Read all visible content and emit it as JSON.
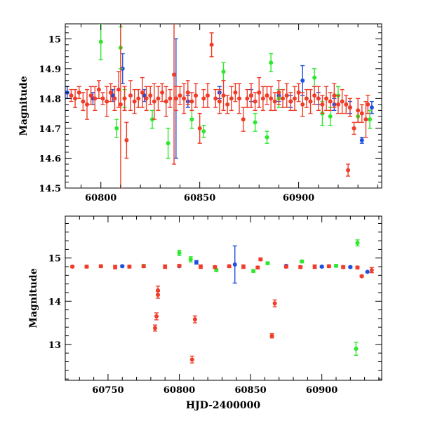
{
  "colors": {
    "red": "#f03c28",
    "green": "#2ee82e",
    "blue": "#1f4fe0"
  },
  "chart_data": [
    {
      "type": "scatter",
      "title": "",
      "xlabel": "",
      "ylabel": "Magnitude",
      "xlim": [
        60782,
        60942
      ],
      "ylim": [
        15.05,
        14.5
      ],
      "y_inverted": true,
      "xticks": [
        60800,
        60850,
        60900
      ],
      "yticks": [
        14.5,
        14.6,
        14.7,
        14.8,
        14.9,
        15
      ],
      "yticks_labels": [
        "14.5",
        "14.6",
        "14.7",
        "14.8",
        "14.9",
        "15"
      ],
      "grid": false,
      "series": [
        {
          "color": "red",
          "points": [
            [
              60785,
              14.81,
              0.02
            ],
            [
              60787,
              14.8,
              0.03
            ],
            [
              60789,
              14.82,
              0.02
            ],
            [
              60791,
              14.79,
              0.03
            ],
            [
              60793,
              14.78,
              0.05
            ],
            [
              60795,
              14.81,
              0.03
            ],
            [
              60797,
              14.8,
              0.04
            ],
            [
              60799,
              14.83,
              0.03
            ],
            [
              60801,
              14.8,
              0.02
            ],
            [
              60803,
              14.79,
              0.05
            ],
            [
              60805,
              14.82,
              0.03
            ],
            [
              60807,
              14.8,
              0.04
            ],
            [
              60809,
              14.83,
              0.06
            ],
            [
              60810,
              14.78,
              0.28
            ],
            [
              60812,
              14.8,
              0.04
            ],
            [
              60813,
              14.66,
              0.06
            ],
            [
              60815,
              14.81,
              0.05
            ],
            [
              60817,
              14.79,
              0.04
            ],
            [
              60819,
              14.8,
              0.03
            ],
            [
              60821,
              14.82,
              0.05
            ],
            [
              60823,
              14.8,
              0.04
            ],
            [
              60825,
              14.81,
              0.03
            ],
            [
              60827,
              14.79,
              0.06
            ],
            [
              60829,
              14.8,
              0.04
            ],
            [
              60831,
              14.82,
              0.03
            ],
            [
              60833,
              14.79,
              0.05
            ],
            [
              60835,
              14.8,
              0.03
            ],
            [
              60837,
              14.88,
              0.3
            ],
            [
              60838,
              14.8,
              0.04
            ],
            [
              60840,
              14.81,
              0.03
            ],
            [
              60842,
              14.8,
              0.05
            ],
            [
              60844,
              14.82,
              0.04
            ],
            [
              60846,
              14.79,
              0.03
            ],
            [
              60848,
              14.81,
              0.04
            ],
            [
              60850,
              14.7,
              0.05
            ],
            [
              60852,
              14.8,
              0.03
            ],
            [
              60854,
              14.81,
              0.04
            ],
            [
              60856,
              14.98,
              0.04
            ],
            [
              60858,
              14.8,
              0.03
            ],
            [
              60860,
              14.79,
              0.04
            ],
            [
              60862,
              14.81,
              0.05
            ],
            [
              60864,
              14.78,
              0.03
            ],
            [
              60866,
              14.8,
              0.04
            ],
            [
              60868,
              14.82,
              0.03
            ],
            [
              60870,
              14.8,
              0.05
            ],
            [
              60872,
              14.73,
              0.04
            ],
            [
              60874,
              14.8,
              0.03
            ],
            [
              60876,
              14.81,
              0.04
            ],
            [
              60878,
              14.79,
              0.03
            ],
            [
              60880,
              14.82,
              0.05
            ],
            [
              60882,
              14.8,
              0.04
            ],
            [
              60884,
              14.81,
              0.03
            ],
            [
              60886,
              14.8,
              0.04
            ],
            [
              60888,
              14.79,
              0.03
            ],
            [
              60890,
              14.82,
              0.04
            ],
            [
              60892,
              14.8,
              0.03
            ],
            [
              60894,
              14.81,
              0.04
            ],
            [
              60896,
              14.79,
              0.03
            ],
            [
              60898,
              14.8,
              0.04
            ],
            [
              60900,
              14.82,
              0.03
            ],
            [
              60902,
              14.78,
              0.04
            ],
            [
              60904,
              14.8,
              0.03
            ],
            [
              60906,
              14.79,
              0.04
            ],
            [
              60908,
              14.81,
              0.03
            ],
            [
              60910,
              14.8,
              0.04
            ],
            [
              60912,
              14.78,
              0.03
            ],
            [
              60914,
              14.8,
              0.04
            ],
            [
              60916,
              14.79,
              0.03
            ],
            [
              60918,
              14.81,
              0.04
            ],
            [
              60920,
              14.78,
              0.03
            ],
            [
              60922,
              14.79,
              0.04
            ],
            [
              60924,
              14.78,
              0.03
            ],
            [
              60925,
              14.56,
              0.02
            ],
            [
              60926,
              14.77,
              0.03
            ],
            [
              60928,
              14.7,
              0.02
            ],
            [
              60930,
              14.76,
              0.04
            ],
            [
              60932,
              14.75,
              0.03
            ],
            [
              60934,
              14.73,
              0.06
            ],
            [
              60935,
              14.78,
              0.03
            ]
          ]
        },
        {
          "color": "green",
          "points": [
            [
              60800,
              14.99,
              0.06
            ],
            [
              60808,
              14.7,
              0.03
            ],
            [
              60810,
              14.97,
              0.07
            ],
            [
              60812,
              14.8,
              0.03
            ],
            [
              60826,
              14.73,
              0.03
            ],
            [
              60834,
              14.65,
              0.05
            ],
            [
              60846,
              14.73,
              0.03
            ],
            [
              60852,
              14.69,
              0.02
            ],
            [
              60862,
              14.89,
              0.03
            ],
            [
              60878,
              14.72,
              0.03
            ],
            [
              60884,
              14.67,
              0.02
            ],
            [
              60886,
              14.92,
              0.03
            ],
            [
              60890,
              14.8,
              0.03
            ],
            [
              60908,
              14.87,
              0.03
            ],
            [
              60912,
              14.75,
              0.04
            ],
            [
              60916,
              14.74,
              0.03
            ],
            [
              60920,
              14.81,
              0.03
            ],
            [
              60930,
              14.74,
              0.02
            ],
            [
              60936,
              14.73,
              0.03
            ]
          ]
        },
        {
          "color": "blue",
          "points": [
            [
              60783,
              14.82,
              0.02
            ],
            [
              60796,
              14.8,
              0.02
            ],
            [
              60806,
              14.81,
              0.02
            ],
            [
              60811,
              14.9,
              0.05
            ],
            [
              60822,
              14.81,
              0.02
            ],
            [
              60838,
              14.8,
              0.2
            ],
            [
              60844,
              14.79,
              0.02
            ],
            [
              60860,
              14.82,
              0.02
            ],
            [
              60876,
              14.81,
              0.02
            ],
            [
              60890,
              14.81,
              0.02
            ],
            [
              60896,
              14.79,
              0.02
            ],
            [
              60902,
              14.86,
              0.05
            ],
            [
              60910,
              14.8,
              0.02
            ],
            [
              60918,
              14.78,
              0.02
            ],
            [
              60926,
              14.77,
              0.02
            ],
            [
              60932,
              14.66,
              0.01
            ],
            [
              60937,
              14.77,
              0.02
            ]
          ]
        }
      ]
    },
    {
      "type": "scatter",
      "title": "",
      "xlabel": "HJD-2400000",
      "ylabel": "Magnitude",
      "xlim": [
        60720,
        60942
      ],
      "ylim": [
        15.97,
        12.17
      ],
      "y_inverted": true,
      "xticks": [
        60750,
        60800,
        60850,
        60900
      ],
      "yticks": [
        13,
        14,
        15
      ],
      "yticks_labels": [
        "13",
        "14",
        "15"
      ],
      "grid": false,
      "series": [
        {
          "color": "red",
          "points": [
            [
              60725,
              14.8,
              0.02
            ],
            [
              60735,
              14.8,
              0.03
            ],
            [
              60745,
              14.81,
              0.03
            ],
            [
              60755,
              14.79,
              0.04
            ],
            [
              60765,
              14.8,
              0.03
            ],
            [
              60775,
              14.81,
              0.03
            ],
            [
              60783,
              13.38,
              0.07
            ],
            [
              60784,
              13.65,
              0.08
            ],
            [
              60785,
              14.15,
              0.08
            ],
            [
              60785,
              14.25,
              0.1
            ],
            [
              60790,
              14.8,
              0.04
            ],
            [
              60800,
              14.82,
              0.03
            ],
            [
              60809,
              12.65,
              0.08
            ],
            [
              60811,
              13.58,
              0.08
            ],
            [
              60815,
              14.8,
              0.04
            ],
            [
              60825,
              14.79,
              0.03
            ],
            [
              60835,
              14.81,
              0.03
            ],
            [
              60845,
              14.8,
              0.04
            ],
            [
              60855,
              14.78,
              0.03
            ],
            [
              60857,
              14.97,
              0.03
            ],
            [
              60865,
              13.2,
              0.05
            ],
            [
              60867,
              13.95,
              0.08
            ],
            [
              60875,
              14.8,
              0.03
            ],
            [
              60885,
              14.79,
              0.03
            ],
            [
              60895,
              14.8,
              0.04
            ],
            [
              60905,
              14.81,
              0.03
            ],
            [
              60915,
              14.79,
              0.03
            ],
            [
              60925,
              14.78,
              0.03
            ],
            [
              60928,
              14.58,
              0.02
            ],
            [
              60935,
              14.72,
              0.06
            ]
          ]
        },
        {
          "color": "green",
          "points": [
            [
              60775,
              14.82,
              0.03
            ],
            [
              60800,
              15.12,
              0.06
            ],
            [
              60808,
              14.97,
              0.06
            ],
            [
              60826,
              14.72,
              0.03
            ],
            [
              60852,
              14.7,
              0.03
            ],
            [
              60862,
              14.88,
              0.03
            ],
            [
              60886,
              14.92,
              0.03
            ],
            [
              60910,
              14.82,
              0.03
            ],
            [
              60924,
              12.9,
              0.15
            ],
            [
              60925,
              15.35,
              0.07
            ]
          ]
        },
        {
          "color": "blue",
          "points": [
            [
              60760,
              14.81,
              0.02
            ],
            [
              60800,
              14.81,
              0.02
            ],
            [
              60812,
              14.9,
              0.04
            ],
            [
              60839,
              14.85,
              0.43
            ],
            [
              60875,
              14.82,
              0.02
            ],
            [
              60900,
              14.8,
              0.02
            ],
            [
              60920,
              14.79,
              0.02
            ],
            [
              60932,
              14.68,
              0.01
            ]
          ]
        }
      ]
    }
  ]
}
